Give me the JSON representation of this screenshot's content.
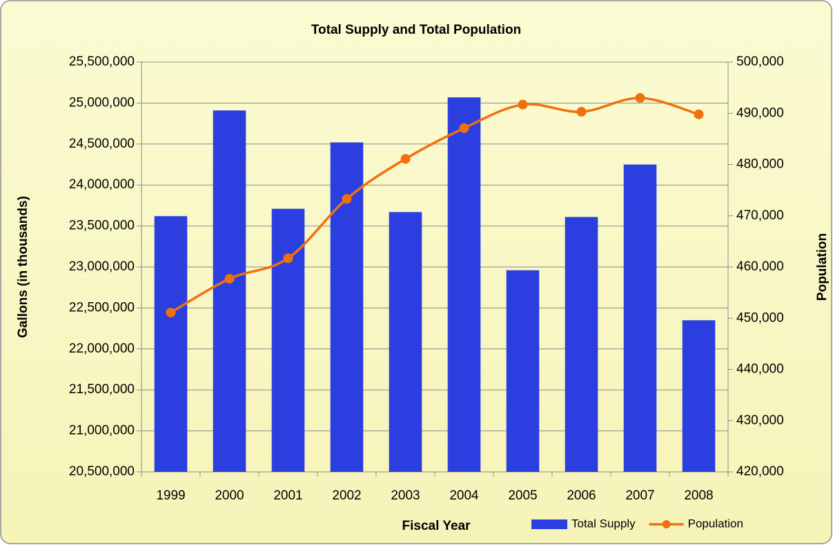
{
  "chart_data": {
    "type": "bar_line",
    "title": "Total Supply and Total Population",
    "x_label": "Fiscal Year",
    "y_label": "Gallons (in thousands)",
    "y2_label": "Population",
    "categories": [
      "1999",
      "2000",
      "2001",
      "2002",
      "2003",
      "2004",
      "2005",
      "2006",
      "2007",
      "2008"
    ],
    "series": [
      {
        "name": "Total Supply",
        "type": "bar",
        "color": "#2b3fe0",
        "values": [
          23620000,
          24910000,
          23710000,
          24520000,
          23670000,
          25070000,
          22960000,
          23610000,
          24250000,
          22350000
        ]
      },
      {
        "name": "Population",
        "type": "line",
        "axis": "y2",
        "color": "#f07010",
        "values": [
          451100,
          457700,
          461700,
          473300,
          481100,
          487100,
          491700,
          490300,
          493000,
          489800
        ]
      }
    ],
    "ylim": [
      20500000,
      25500000
    ],
    "yticks": [
      {
        "value": 20500000,
        "label": "20,500,000"
      },
      {
        "value": 21000000,
        "label": "21,000,000"
      },
      {
        "value": 21500000,
        "label": "21,500,000"
      },
      {
        "value": 22000000,
        "label": "22,000,000"
      },
      {
        "value": 22500000,
        "label": "22,500,000"
      },
      {
        "value": 23000000,
        "label": "23,000,000"
      },
      {
        "value": 23500000,
        "label": "23,500,000"
      },
      {
        "value": 24000000,
        "label": "24,000,000"
      },
      {
        "value": 24500000,
        "label": "24,500,000"
      },
      {
        "value": 25000000,
        "label": "25,000,000"
      },
      {
        "value": 25500000,
        "label": "25,500,000"
      }
    ],
    "y2lim": [
      420000,
      500000
    ],
    "y2ticks": [
      {
        "value": 420000,
        "label": "420,000"
      },
      {
        "value": 430000,
        "label": "430,000"
      },
      {
        "value": 440000,
        "label": "440,000"
      },
      {
        "value": 450000,
        "label": "450,000"
      },
      {
        "value": 460000,
        "label": "460,000"
      },
      {
        "value": 470000,
        "label": "470,000"
      },
      {
        "value": 480000,
        "label": "480,000"
      },
      {
        "value": 490000,
        "label": "490,000"
      },
      {
        "value": 500000,
        "label": "500,000"
      }
    ],
    "grid": true,
    "legend": "bottom-right"
  }
}
